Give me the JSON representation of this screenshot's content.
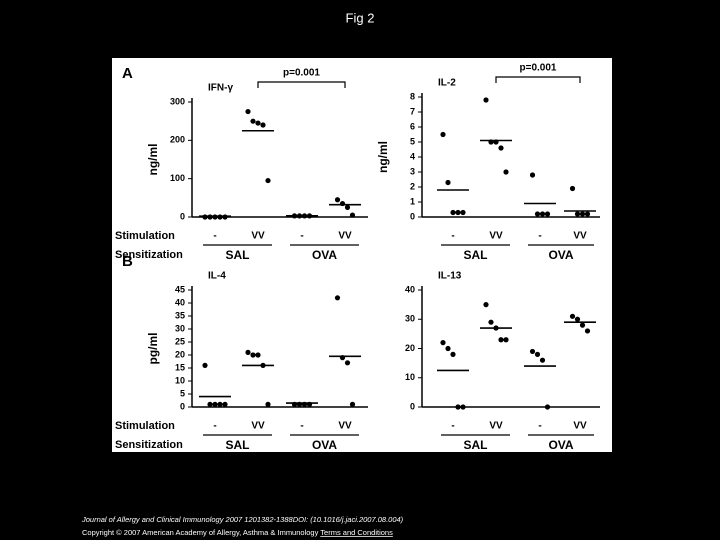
{
  "header": {
    "title": "Fig 2"
  },
  "chart_data": [
    {
      "type": "dot",
      "panel": "A",
      "title": "IFN-γ",
      "ylabel": "ng/ml",
      "annotation": "p=0.001",
      "categories": [
        "-",
        "VV",
        "-",
        "VV"
      ],
      "groups": [
        "SAL",
        "OVA"
      ],
      "row_labels": [
        "Stimulation",
        "Sensitization"
      ],
      "values": [
        [
          0,
          0,
          0,
          0,
          0
        ],
        [
          275,
          250,
          245,
          240,
          95
        ],
        [
          3,
          3,
          3,
          3
        ],
        [
          45,
          35,
          25,
          5
        ]
      ],
      "medians": [
        2,
        225,
        3,
        32
      ],
      "ylim": [
        0,
        300
      ],
      "yticks": [
        0,
        100,
        200,
        300
      ]
    },
    {
      "type": "dot",
      "title": "IL-2",
      "ylabel": "ng/ml",
      "annotation": "p=0.001",
      "categories": [
        "-",
        "VV",
        "-",
        "VV"
      ],
      "groups": [
        "SAL",
        "OVA"
      ],
      "values": [
        [
          5.5,
          2.3,
          0.3,
          0.3,
          0.3
        ],
        [
          7.8,
          5,
          5,
          4.6,
          3
        ],
        [
          2.8,
          0.2,
          0.2,
          0.2
        ],
        [
          1.9,
          0.2,
          0.2,
          0.2
        ]
      ],
      "medians": [
        1.8,
        5.1,
        0.9,
        0.4
      ],
      "ylim": [
        0,
        8
      ],
      "yticks": [
        0,
        1,
        2,
        3,
        4,
        5,
        6,
        7,
        8
      ]
    },
    {
      "type": "dot",
      "panel": "B",
      "title": "IL-4",
      "ylabel": "pg/ml",
      "categories": [
        "-",
        "VV",
        "-",
        "VV"
      ],
      "groups": [
        "SAL",
        "OVA"
      ],
      "row_labels": [
        "Stimulation",
        "Sensitization"
      ],
      "values": [
        [
          16,
          1,
          1,
          1,
          1
        ],
        [
          21,
          20,
          20,
          16,
          1
        ],
        [
          1,
          1,
          1,
          1
        ],
        [
          42,
          19,
          17,
          1
        ]
      ],
      "medians": [
        4,
        16,
        1.5,
        19.5
      ],
      "ylim": [
        0,
        45
      ],
      "yticks": [
        0,
        5,
        10,
        15,
        20,
        25,
        30,
        35,
        40,
        45
      ]
    },
    {
      "type": "dot",
      "title": "IL-13",
      "categories": [
        "-",
        "VV",
        "-",
        "VV"
      ],
      "groups": [
        "SAL",
        "OVA"
      ],
      "values": [
        [
          22,
          20,
          18,
          0,
          0
        ],
        [
          35,
          29,
          27,
          23,
          23
        ],
        [
          19,
          18,
          16,
          0
        ],
        [
          31,
          30,
          28,
          26
        ]
      ],
      "medians": [
        12.5,
        27,
        14,
        29
      ],
      "ylim": [
        0,
        40
      ],
      "yticks": [
        0,
        10,
        20,
        30,
        40
      ]
    }
  ],
  "footer": {
    "citation": "Journal of Allergy and Clinical Immunology 2007 1201382-1388DOI: (10.1016/j.jaci.2007.08.004)",
    "copyright": "Copyright © 2007 American Academy of Allergy, Asthma & Immunology",
    "link": "Terms and Conditions"
  }
}
